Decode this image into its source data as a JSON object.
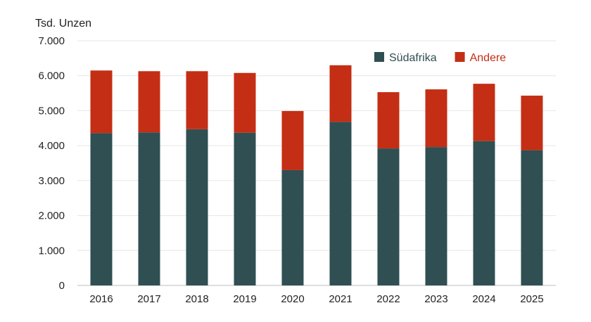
{
  "chart_data": {
    "type": "bar",
    "stacked": true,
    "unit_label": "Tsd. Unzen",
    "categories": [
      "2016",
      "2017",
      "2018",
      "2019",
      "2020",
      "2021",
      "2022",
      "2023",
      "2024",
      "2025"
    ],
    "series": [
      {
        "name": "Südafrika",
        "color": "#2f4f52",
        "values": [
          4360,
          4380,
          4470,
          4370,
          3300,
          4680,
          3920,
          3960,
          4130,
          3870
        ]
      },
      {
        "name": "Andere",
        "color": "#c42e14",
        "values": [
          1790,
          1750,
          1660,
          1710,
          1690,
          1620,
          1610,
          1650,
          1640,
          1560
        ]
      }
    ],
    "ylim": [
      0,
      7000
    ],
    "yticks": [
      0,
      1000,
      2000,
      3000,
      4000,
      5000,
      6000,
      7000
    ],
    "ytick_labels": [
      "0",
      "1.000",
      "2.000",
      "3.000",
      "4.000",
      "5.000",
      "6.000",
      "7.000"
    ],
    "grid": true,
    "legend_position": "top-right"
  }
}
